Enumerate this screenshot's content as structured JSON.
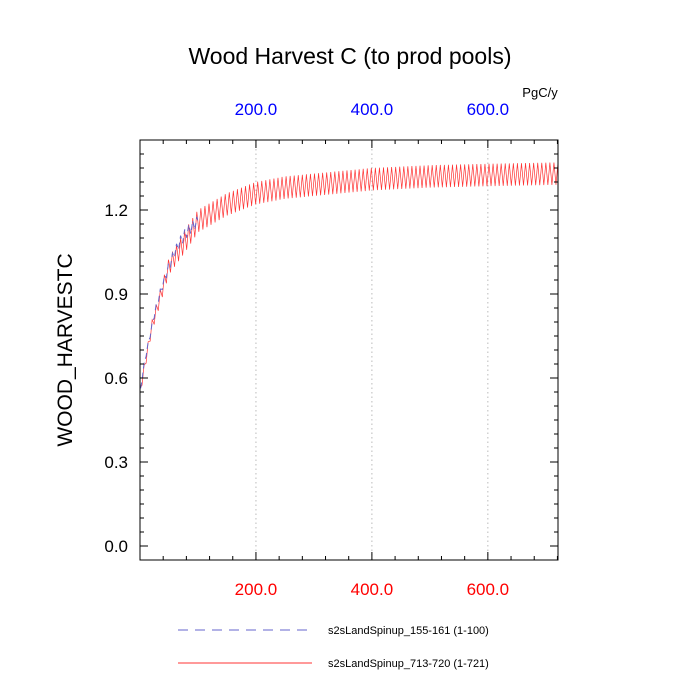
{
  "chart_data": {
    "type": "line",
    "title": "Wood Harvest C (to prod pools)",
    "ylabel": "WOOD_HARVESTC",
    "units": "PgC/y",
    "xlim": [
      0,
      721
    ],
    "ylim": [
      -0.05,
      1.45
    ],
    "yticks": [
      0.0,
      0.3,
      0.6,
      0.9,
      1.2
    ],
    "ytick_labels": [
      "0.0",
      "0.3",
      "0.6",
      "0.9",
      "1.2"
    ],
    "xticks": [
      200,
      400,
      600
    ],
    "xtick_labels_bottom": [
      "200.0",
      "400.0",
      "600.0"
    ],
    "xtick_labels_top": [
      "200.0",
      "400.0",
      "600.0"
    ],
    "grid": "vertical dotted at major x ticks",
    "legend_position": "bottom",
    "series": [
      {
        "name": "s2sLandSpinup_155-161 (1-100)",
        "color": "#6666cc",
        "style": "dashed",
        "x_range": [
          1,
          100
        ],
        "x": [
          1,
          5,
          10,
          15,
          20,
          25,
          30,
          40,
          50,
          60,
          70,
          80,
          90,
          100
        ],
        "mean": [
          0.56,
          0.62,
          0.68,
          0.73,
          0.78,
          0.83,
          0.87,
          0.94,
          1.0,
          1.05,
          1.09,
          1.12,
          1.14,
          1.16
        ],
        "amplitude": 0.02
      },
      {
        "name": "s2sLandSpinup_713-720 (1-721)",
        "color": "#ff3333",
        "style": "solid",
        "x_range": [
          1,
          721
        ],
        "x": [
          1,
          20,
          50,
          100,
          150,
          200,
          250,
          300,
          400,
          500,
          600,
          721
        ],
        "mean": [
          0.56,
          0.78,
          1.0,
          1.16,
          1.22,
          1.26,
          1.28,
          1.29,
          1.31,
          1.32,
          1.325,
          1.33
        ],
        "amplitude": 0.04
      }
    ]
  }
}
